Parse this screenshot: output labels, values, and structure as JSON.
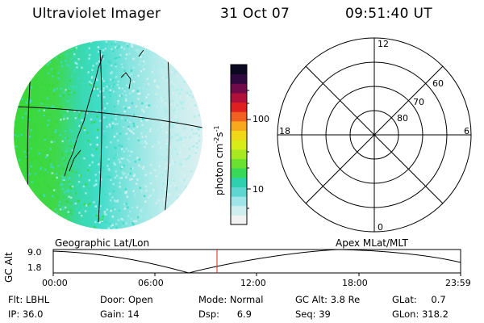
{
  "header": {
    "instrument": "Ultraviolet Imager",
    "date": "31 Oct 07",
    "time": "09:51:40 UT"
  },
  "colorbar": {
    "unit_prefix": "photon cm",
    "unit_exp1": "-2",
    "unit_mid": "s",
    "unit_exp2": "-1",
    "tick_high": "100",
    "tick_low": "10",
    "colors_bottom_to_top": [
      "#f2f2f2",
      "#cfeef0",
      "#9ee4e8",
      "#5fd6d2",
      "#2fd0b0",
      "#38d858",
      "#6ae030",
      "#a8e820",
      "#d8ec18",
      "#f0d818",
      "#f8a81c",
      "#f06020",
      "#e02020",
      "#b0103a",
      "#700a4a",
      "#300840",
      "#0a0820"
    ]
  },
  "polar_grid": {
    "labels": {
      "top": "12",
      "bottom": "0",
      "left": "18",
      "right": "6"
    },
    "rings": [
      "60",
      "70",
      "80"
    ]
  },
  "earth_image": {
    "colors": {
      "green": "#38d838",
      "teal": "#38dcc8",
      "light_cyan": "#a8ecec",
      "pale": "#d8f0f0"
    }
  },
  "timeline": {
    "y_axis_label": "GC Alt",
    "y_ticks": [
      "9.0",
      "1.8"
    ],
    "left_caption": "Geographic Lat/Lon",
    "right_caption": "Apex MLat/MLT",
    "x_ticks": [
      "00:00",
      "06:00",
      "12:00",
      "18:00",
      "23:59"
    ],
    "marker_color": "#e02020"
  },
  "footer": {
    "filter_label": "Flt:",
    "filter_value": "LBHL",
    "door_label": "Door:",
    "door_value": "Open",
    "mode_label": "Mode:",
    "mode_value": "Normal",
    "gcalt_label": "GC Alt:",
    "gcalt_value": "3.8 Re",
    "glat_label": "GLat:",
    "glat_value": "0.7",
    "ip_label": "IP:",
    "ip_value": "36.0",
    "gain_label": "Gain:",
    "gain_value": "14",
    "dsp_label": "Dsp:",
    "dsp_value": "6.9",
    "seq_label": "Seq:",
    "seq_value": "39",
    "glon_label": "GLon:",
    "glon_value": "318.2"
  }
}
